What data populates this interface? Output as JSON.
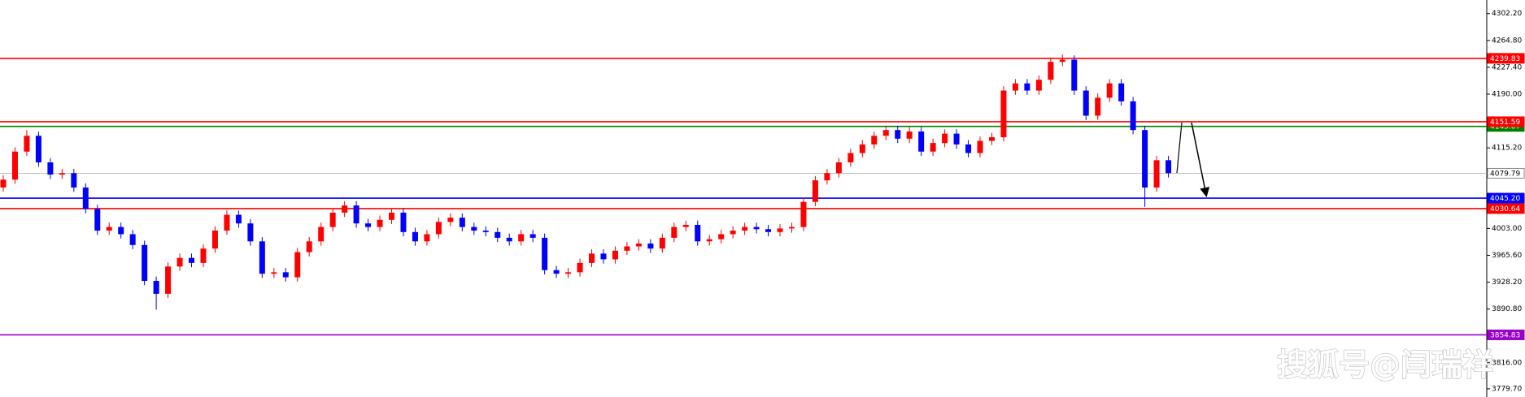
{
  "chart_data": {
    "type": "candlestick",
    "ylim": [
      3768.3,
      4321.1
    ],
    "yticks": [
      {
        "value": 4302.2,
        "label": "4302.20"
      },
      {
        "value": 4264.8,
        "label": "4264.80"
      },
      {
        "value": 4227.4,
        "label": "4227.40"
      },
      {
        "value": 4190.0,
        "label": "4190.00"
      },
      {
        "value": 4115.2,
        "label": "4115.20"
      },
      {
        "value": 4003.0,
        "label": "4003.00"
      },
      {
        "value": 3965.6,
        "label": "3965.60"
      },
      {
        "value": 3928.2,
        "label": "3928.20"
      },
      {
        "value": 3890.8,
        "label": "3890.80"
      },
      {
        "value": 3816.0,
        "label": "3816.00"
      },
      {
        "value": 3779.7,
        "label": "3779.70"
      }
    ],
    "up_color": "#ff0000",
    "down_color": "#0000ff",
    "levels": [
      {
        "value": 4239.83,
        "label": "4239.83",
        "color": "#ff0000"
      },
      {
        "value": 4145.07,
        "label": "4145.07",
        "color": "#008000"
      },
      {
        "value": 4151.59,
        "label": "4151.59",
        "color": "#ff0000"
      },
      {
        "value": 4079.79,
        "label": "4079.79",
        "color": "#c0c0c0"
      },
      {
        "value": 4045.2,
        "label": "4045.20",
        "color": "#0000ff"
      },
      {
        "value": 4030.64,
        "label": "4030.64",
        "color": "#ff0000"
      },
      {
        "value": 3854.83,
        "label": "3854.83",
        "color": "#9900cc"
      }
    ],
    "watermark": "搜狐号@闫瑞祥",
    "open": [
      4060,
      4071,
      4110,
      4132,
      4095,
      4078,
      4080,
      4060,
      4030,
      4000,
      4005,
      3995,
      3980,
      3930,
      3912,
      3950,
      3962,
      3955,
      3975,
      4000,
      4022,
      4010,
      3985,
      3940,
      3942,
      3935,
      3970,
      3985,
      4005,
      4025,
      4035,
      4010,
      4005,
      4015,
      4025,
      3998,
      3985,
      3995,
      4012,
      4018,
      4005,
      4000,
      3998,
      3990,
      3985,
      3995,
      3990,
      3945,
      3940,
      3942,
      3955,
      3968,
      3960,
      3972,
      3978,
      3982,
      3975,
      3990,
      4005,
      4008,
      3985,
      3988,
      3995,
      4000,
      4005,
      4002,
      3998,
      4003,
      4005,
      4040,
      4070,
      4080,
      4095,
      4108,
      4120,
      4132,
      4140,
      4128,
      4138,
      4110,
      4122,
      4135,
      4120,
      4108,
      4125,
      4130,
      4195,
      4205,
      4195,
      4210,
      4235,
      4238,
      4195,
      4160,
      4185,
      4205,
      4180,
      4140,
      4060,
      4098
    ],
    "high": [
      4077,
      4116,
      4140,
      4138,
      4101,
      4086,
      4086,
      4066,
      4036,
      4011,
      4011,
      4001,
      3986,
      3936,
      3956,
      3968,
      3968,
      3981,
      4006,
      4028,
      4028,
      4016,
      3991,
      3948,
      3948,
      3976,
      3991,
      4011,
      4031,
      4041,
      4041,
      4016,
      4021,
      4031,
      4031,
      4004,
      4001,
      4018,
      4024,
      4024,
      4011,
      4006,
      4004,
      3996,
      4001,
      4001,
      3996,
      3951,
      3948,
      3961,
      3974,
      3974,
      3978,
      3984,
      3988,
      3988,
      3996,
      4011,
      4014,
      4014,
      3994,
      4001,
      4006,
      4011,
      4011,
      4008,
      4009,
      4011,
      4046,
      4076,
      4086,
      4101,
      4114,
      4126,
      4138,
      4146,
      4146,
      4144,
      4144,
      4128,
      4141,
      4141,
      4126,
      4131,
      4136,
      4201,
      4211,
      4211,
      4216,
      4241,
      4245,
      4244,
      4201,
      4191,
      4211,
      4211,
      4186,
      4146,
      4104,
      4104
    ],
    "low": [
      4054,
      4065,
      4104,
      4089,
      4072,
      4072,
      4054,
      4024,
      3994,
      3994,
      3989,
      3974,
      3924,
      3890,
      3906,
      3944,
      3949,
      3949,
      3969,
      3994,
      4004,
      3979,
      3934,
      3934,
      3929,
      3929,
      3964,
      3979,
      3999,
      4019,
      4004,
      3999,
      3999,
      4009,
      3992,
      3979,
      3979,
      3989,
      4006,
      3999,
      3994,
      3992,
      3984,
      3979,
      3979,
      3984,
      3939,
      3934,
      3934,
      3936,
      3949,
      3954,
      3954,
      3966,
      3972,
      3969,
      3969,
      3984,
      3999,
      3979,
      3979,
      3982,
      3989,
      3994,
      3996,
      3992,
      3992,
      3997,
      3999,
      4034,
      4064,
      4074,
      4089,
      4102,
      4114,
      4126,
      4122,
      4122,
      4104,
      4104,
      4116,
      4114,
      4102,
      4102,
      4119,
      4124,
      4189,
      4189,
      4189,
      4204,
      4229,
      4189,
      4154,
      4154,
      4179,
      4174,
      4134,
      4033,
      4054,
      4074
    ],
    "close": [
      4071,
      4110,
      4132,
      4095,
      4078,
      4080,
      4060,
      4030,
      4000,
      4005,
      3995,
      3980,
      3930,
      3912,
      3950,
      3962,
      3955,
      3975,
      4000,
      4022,
      4010,
      3985,
      3940,
      3942,
      3935,
      3970,
      3985,
      4005,
      4025,
      4035,
      4010,
      4005,
      4015,
      4025,
      3998,
      3985,
      3995,
      4012,
      4018,
      4005,
      4000,
      3998,
      3990,
      3985,
      3995,
      3990,
      3945,
      3940,
      3942,
      3955,
      3968,
      3960,
      3972,
      3978,
      3982,
      3975,
      3990,
      4005,
      4008,
      3985,
      3988,
      3995,
      4000,
      4005,
      4002,
      3998,
      4003,
      4005,
      4040,
      4070,
      4080,
      4095,
      4108,
      4120,
      4132,
      4140,
      4128,
      4138,
      4110,
      4122,
      4135,
      4120,
      4108,
      4125,
      4130,
      4195,
      4205,
      4195,
      4210,
      4235,
      4238,
      4195,
      4160,
      4185,
      4205,
      4180,
      4140,
      4060,
      4098,
      4080
    ]
  }
}
